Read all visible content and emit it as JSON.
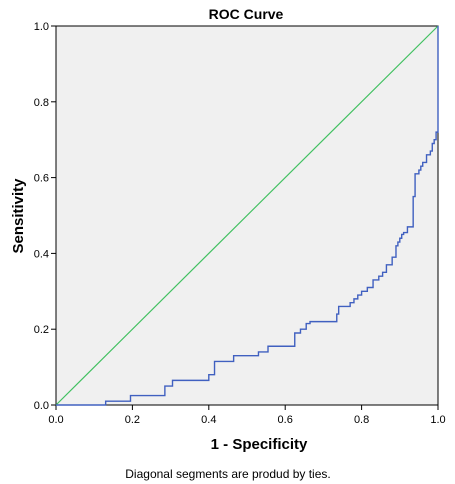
{
  "chart_data": {
    "type": "line",
    "title": "ROC Curve",
    "xlabel": "1 - Specificity",
    "ylabel": "Sensitivity",
    "xlim": [
      0,
      1
    ],
    "ylim": [
      0,
      1
    ],
    "x_ticks": [
      "0.0",
      "0.2",
      "0.4",
      "0.6",
      "0.8",
      "1.0"
    ],
    "y_ticks": [
      "0.0",
      "0.2",
      "0.4",
      "0.6",
      "0.8",
      "1.0"
    ],
    "grid": false,
    "footnote": "Diagonal segments are produd by ties.",
    "colors": {
      "plot_background": "#f0f0f0",
      "roc": "#4060c0",
      "reference": "#40c060"
    },
    "series": [
      {
        "style": "step",
        "x": [
          0.0,
          0.13,
          0.13,
          0.195,
          0.195,
          0.285,
          0.285,
          0.305,
          0.305,
          0.4,
          0.4,
          0.415,
          0.415,
          0.465,
          0.465,
          0.53,
          0.53,
          0.555,
          0.555,
          0.625,
          0.625,
          0.64,
          0.64,
          0.655,
          0.655,
          0.665,
          0.665,
          0.735,
          0.735,
          0.74,
          0.74,
          0.77,
          0.77,
          0.78,
          0.78,
          0.79,
          0.79,
          0.8,
          0.8,
          0.815,
          0.815,
          0.83,
          0.83,
          0.845,
          0.845,
          0.855,
          0.855,
          0.865,
          0.865,
          0.88,
          0.88,
          0.89,
          0.89,
          0.895,
          0.895,
          0.9,
          0.9,
          0.905,
          0.905,
          0.91,
          0.91,
          0.92,
          0.92,
          0.935,
          0.935,
          0.94,
          0.94,
          0.95,
          0.95,
          0.955,
          0.955,
          0.96,
          0.96,
          0.97,
          0.97,
          0.98,
          0.98,
          0.985,
          0.985,
          0.99,
          0.99,
          0.995,
          0.995,
          1.0,
          1.0
        ],
        "y": [
          0.0,
          0.0,
          0.01,
          0.01,
          0.025,
          0.025,
          0.05,
          0.05,
          0.065,
          0.065,
          0.08,
          0.08,
          0.115,
          0.115,
          0.13,
          0.13,
          0.14,
          0.14,
          0.155,
          0.155,
          0.19,
          0.19,
          0.2,
          0.2,
          0.215,
          0.215,
          0.22,
          0.22,
          0.24,
          0.24,
          0.26,
          0.26,
          0.27,
          0.27,
          0.28,
          0.28,
          0.29,
          0.29,
          0.3,
          0.3,
          0.31,
          0.31,
          0.33,
          0.33,
          0.34,
          0.34,
          0.35,
          0.35,
          0.37,
          0.37,
          0.39,
          0.39,
          0.42,
          0.42,
          0.43,
          0.43,
          0.44,
          0.44,
          0.45,
          0.45,
          0.455,
          0.455,
          0.47,
          0.47,
          0.55,
          0.55,
          0.61,
          0.61,
          0.62,
          0.62,
          0.63,
          0.63,
          0.64,
          0.64,
          0.66,
          0.66,
          0.67,
          0.67,
          0.69,
          0.69,
          0.7,
          0.7,
          0.72,
          0.72,
          1.0
        ]
      },
      {
        "style": "line",
        "x": [
          0,
          1
        ],
        "y": [
          0,
          1
        ]
      }
    ]
  }
}
